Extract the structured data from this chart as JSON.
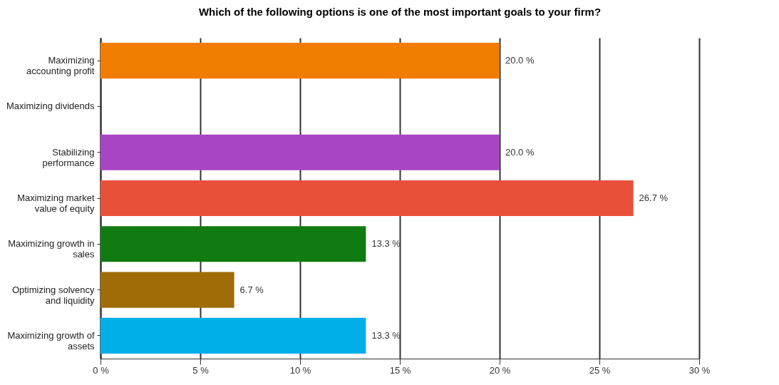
{
  "chart_data": {
    "type": "bar",
    "orientation": "horizontal",
    "title": "Which of the following options is one of the most important goals to your firm?",
    "categories": [
      "Maximizing accounting profit",
      "Maximizing dividends",
      "Stabilizing performance",
      "Maximizing market value of equity",
      "Maximizing growth in sales",
      "Optimizing solvency and liquidity",
      "Maximizing growth of assets"
    ],
    "values": [
      20.0,
      0,
      20.0,
      26.7,
      13.3,
      6.7,
      13.3
    ],
    "colors": [
      "#f07c00",
      "#ffffff",
      "#a845c4",
      "#e9503a",
      "#117a11",
      "#a06c08",
      "#00aee8"
    ],
    "value_labels": [
      "20.0 %",
      null,
      "20.0 %",
      "26.7 %",
      "13.3 %",
      "6.7 %",
      "13.3 %"
    ],
    "xlim": [
      0,
      30
    ],
    "xticks": [
      {
        "value": 0,
        "label": "0 %"
      },
      {
        "value": 5,
        "label": "5 %"
      },
      {
        "value": 10,
        "label": "10 %"
      },
      {
        "value": 15,
        "label": "15 %"
      },
      {
        "value": 20,
        "label": "20 %"
      },
      {
        "value": 25,
        "label": "25 %"
      },
      {
        "value": 30,
        "label": "30 %"
      }
    ],
    "grid": "x"
  }
}
